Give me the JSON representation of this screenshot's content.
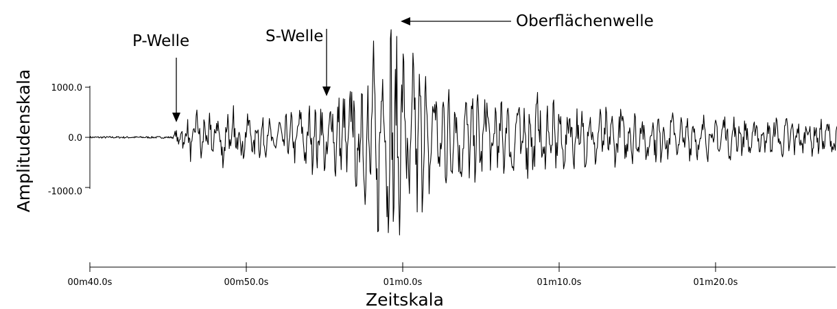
{
  "chart_data": {
    "type": "line",
    "title": "",
    "xlabel": "Zeitskala",
    "ylabel": "Amplitudenskala",
    "xlim": [
      40,
      88
    ],
    "ylim": [
      -2500,
      2550
    ],
    "x_ticks": [
      {
        "value": 40,
        "label": "00m40.0s"
      },
      {
        "value": 50,
        "label": "00m50.0s"
      },
      {
        "value": 60,
        "label": "01m0.0s"
      },
      {
        "value": 70,
        "label": "01m10.0s"
      },
      {
        "value": 80,
        "label": "01m20.0s"
      }
    ],
    "y_ticks": [
      {
        "value": 1000,
        "label": "1000.0"
      },
      {
        "value": 0,
        "label": "0.0"
      },
      {
        "value": -1000,
        "label": "-1000.0"
      }
    ],
    "grid": false,
    "series": [
      {
        "values_note": "seismogram trace, x in seconds, y in amplitude units",
        "x": [
          40.0,
          45.3,
          45.6,
          46.0,
          47.0,
          48.0,
          49.0,
          50.0,
          51.0,
          52.0,
          53.0,
          54.0,
          55.0,
          55.5,
          56.0,
          57.0,
          57.5,
          58.0,
          58.4,
          58.9,
          59.3,
          59.6,
          60.0,
          60.5,
          61.0,
          61.5,
          62.0,
          63.0,
          64.0,
          65.0,
          66.0,
          67.0,
          68.0,
          69.0,
          70.0,
          72.0,
          74.0,
          76.0,
          78.0,
          80.0,
          82.0,
          84.0,
          86.0,
          88.0
        ],
        "envelope": [
          30,
          30,
          250,
          400,
          650,
          550,
          700,
          500,
          450,
          400,
          550,
          700,
          900,
          950,
          1000,
          1300,
          1800,
          2000,
          2300,
          2200,
          2550,
          2300,
          1900,
          2100,
          1700,
          1500,
          1200,
          1100,
          900,
          950,
          900,
          850,
          1000,
          900,
          700,
          650,
          600,
          550,
          500,
          500,
          450,
          450,
          400,
          350
        ]
      }
    ],
    "annotations": [
      {
        "text": "P-Welle",
        "x": 45.5,
        "y": 300
      },
      {
        "text": "S-Welle",
        "x": 55.0,
        "y": 800
      },
      {
        "text": "Oberflächenwelle",
        "x": 60.0,
        "y": 2300
      }
    ]
  }
}
